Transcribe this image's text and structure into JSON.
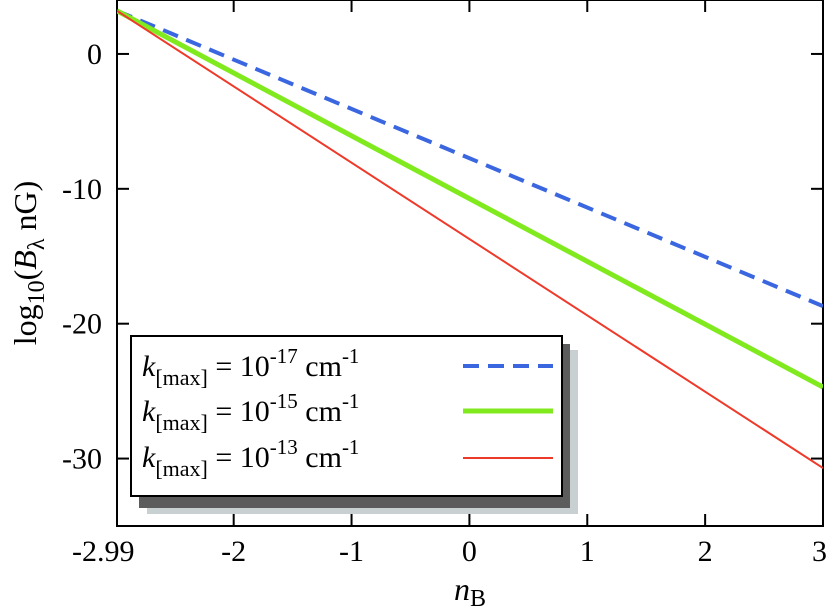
{
  "chart_data": {
    "type": "line",
    "xlabel": {
      "main": "n",
      "sub": "B"
    },
    "ylabel": {
      "pre": "log",
      "sub": "10",
      "mid": "(",
      "var": "B",
      "varsub": "λ",
      "post": " nG)"
    },
    "xlim": [
      -2.99,
      3
    ],
    "ylim": [
      -35,
      4
    ],
    "xticks": [
      -2.99,
      -2,
      -1,
      0,
      1,
      2,
      3
    ],
    "xtick_labels": [
      "-2.99",
      "-2",
      "-1",
      "0",
      "1",
      "2",
      "3"
    ],
    "yticks": [
      0,
      -10,
      -20,
      -30
    ],
    "ytick_labels": [
      "0",
      "-10",
      "-20",
      "-30"
    ],
    "grid": false,
    "legend_position": "bottom-left",
    "series": [
      {
        "legend": {
          "k": "k",
          "ksub": "[max]",
          "eq": " = 10",
          "exp": "-17",
          "unit": " cm",
          "unitexp": "-1"
        },
        "color": "#3a66e0",
        "style": "dashed",
        "x": [
          -2.99,
          3
        ],
        "y": [
          3.2,
          -18.7
        ]
      },
      {
        "legend": {
          "k": "k",
          "ksub": "[max]",
          "eq": " = 10",
          "exp": "-15",
          "unit": " cm",
          "unitexp": "-1"
        },
        "color": "#80ea1e",
        "style": "solid-thick",
        "x": [
          -2.99,
          3
        ],
        "y": [
          3.2,
          -24.7
        ]
      },
      {
        "legend": {
          "k": "k",
          "ksub": "[max]",
          "eq": " = 10",
          "exp": "-13",
          "unit": " cm",
          "unitexp": "-1"
        },
        "color": "#ee3a2a",
        "style": "solid-thin",
        "x": [
          -2.99,
          3
        ],
        "y": [
          3.2,
          -30.7
        ]
      }
    ]
  }
}
